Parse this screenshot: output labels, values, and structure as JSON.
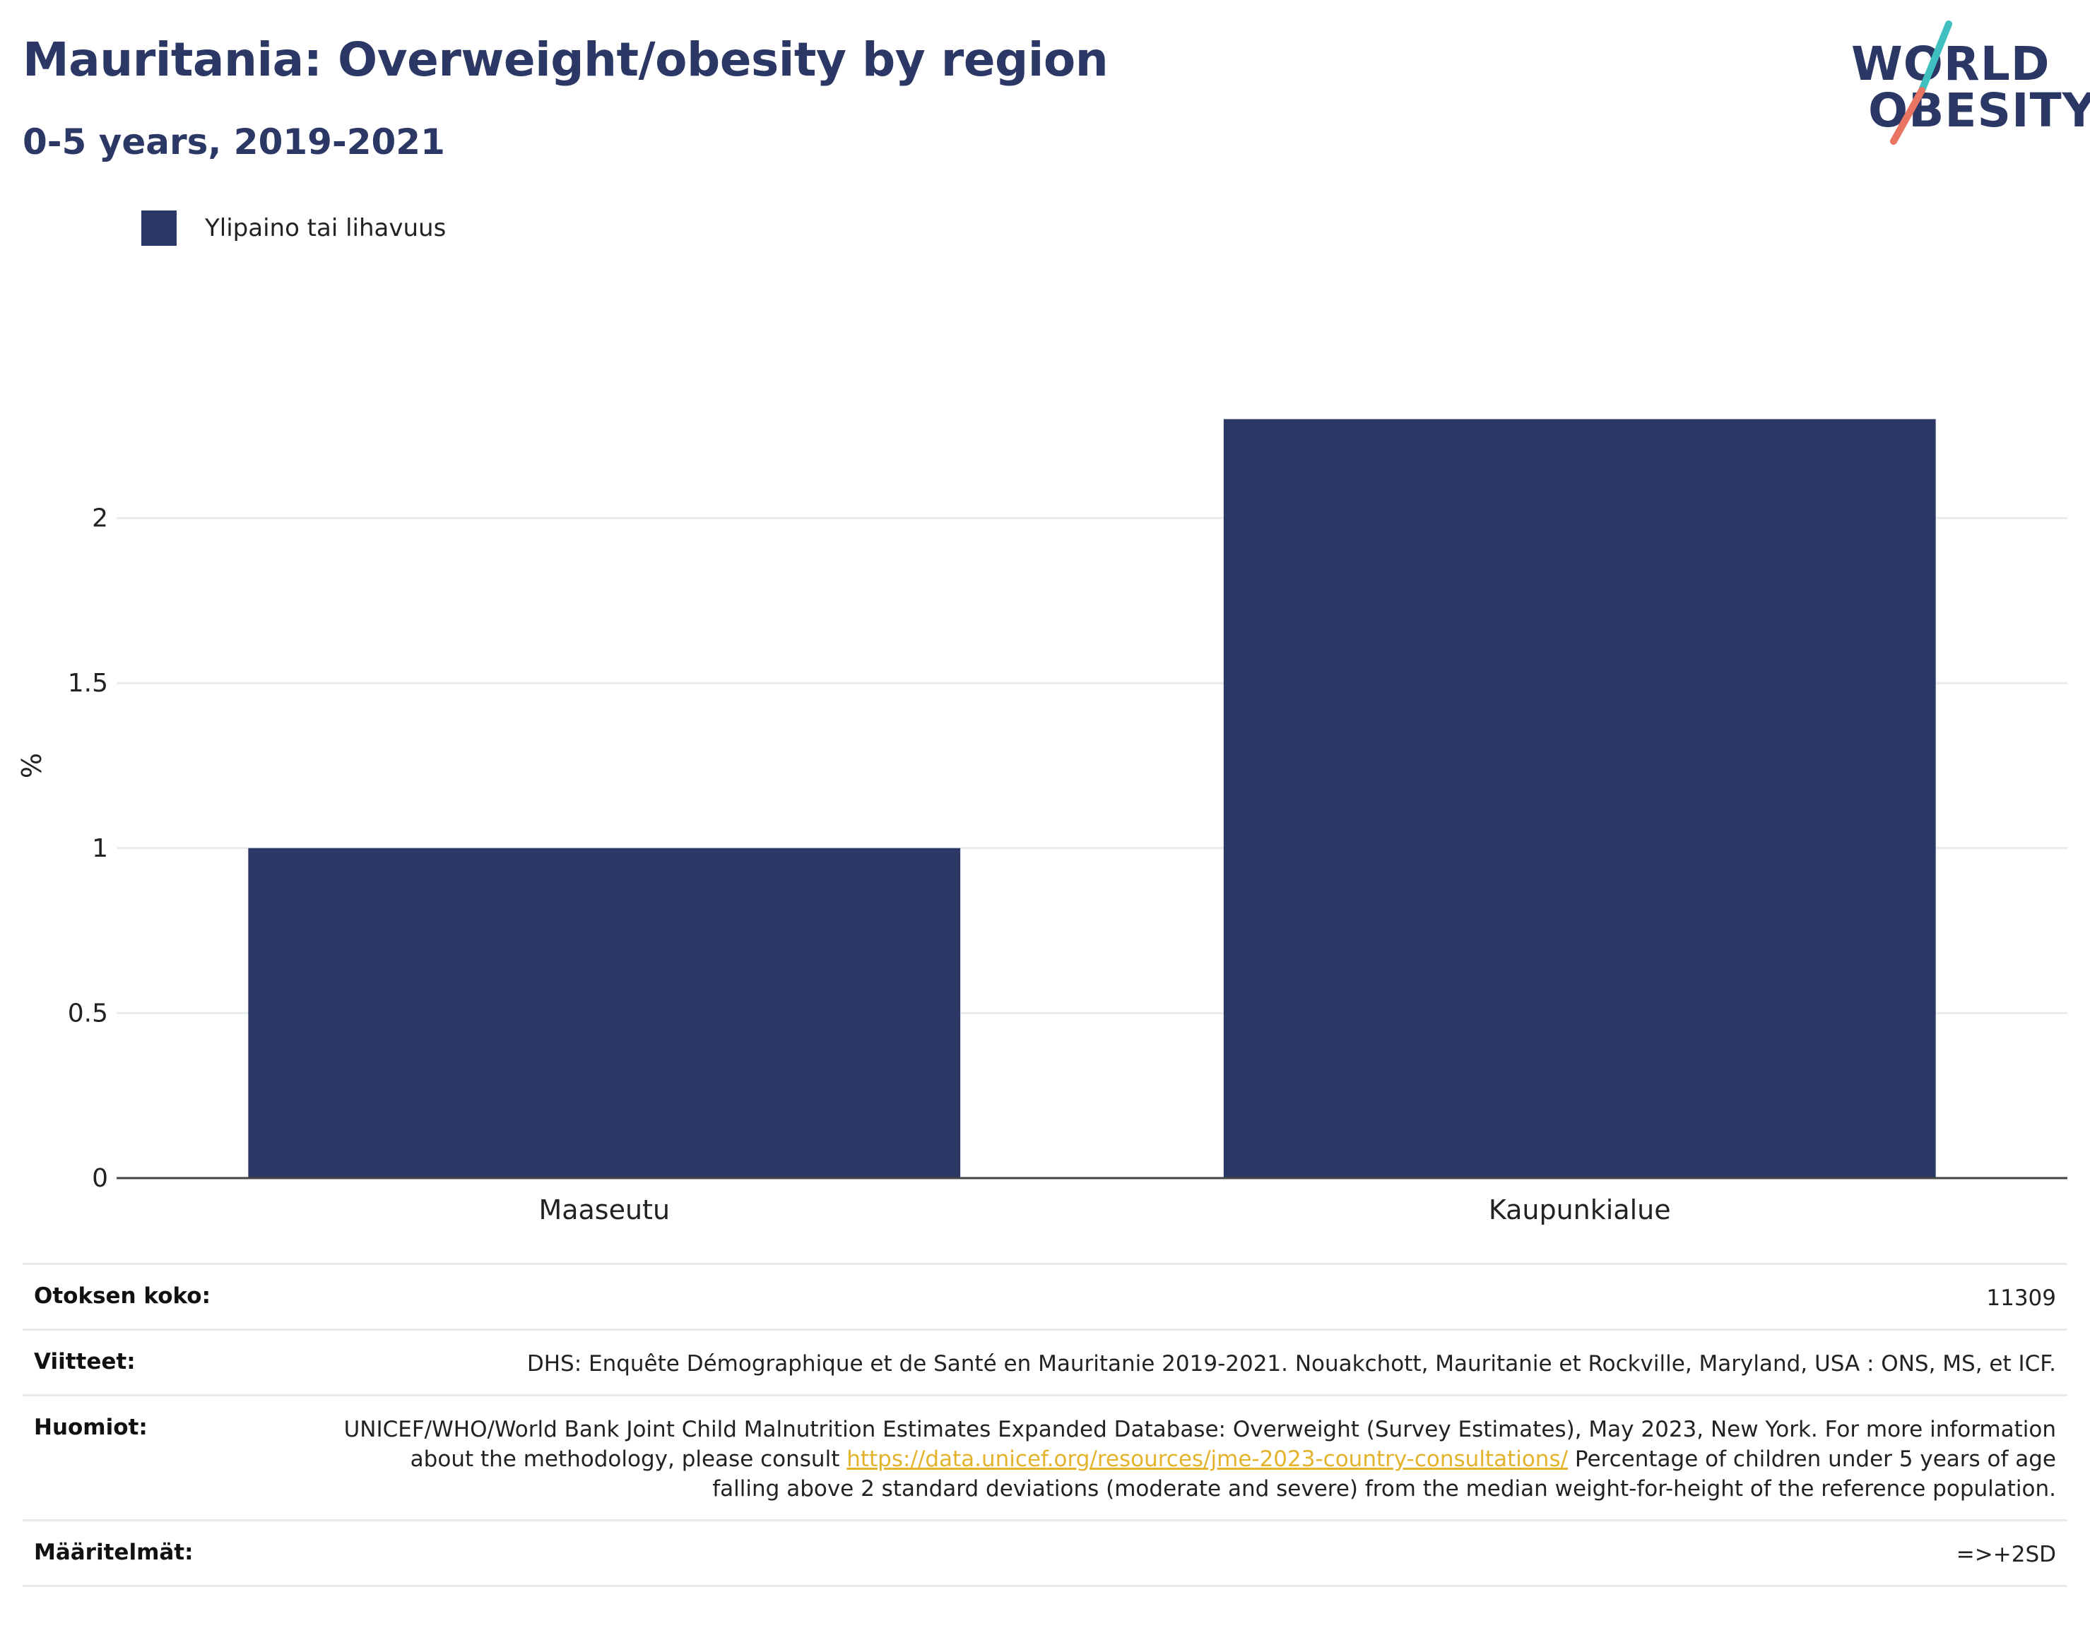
{
  "header": {
    "title": "Mauritania: Overweight/obesity by region",
    "subtitle": "0-5 years, 2019-2021"
  },
  "logo": {
    "line1": "WORLD",
    "line2": "OBESITY",
    "colors": {
      "text": "#2b3765",
      "slash_top": "#3fbfbf",
      "slash_bottom": "#e87461"
    }
  },
  "chart_data": {
    "type": "bar",
    "categories": [
      "Maaseutu",
      "Kaupunkialue"
    ],
    "series": [
      {
        "name": "Ylipaino tai lihavuus",
        "values": [
          1.0,
          2.3
        ],
        "color": "#2b3765"
      }
    ],
    "ylabel": "%",
    "xlabel": "",
    "ylim": [
      0,
      2.5
    ],
    "yticks": [
      0,
      0.5,
      1,
      1.5,
      2
    ],
    "ytick_labels": [
      "0",
      "0.5",
      "1",
      "1.5",
      "2"
    ],
    "grid": true,
    "legend_position": "top-left"
  },
  "info": {
    "sample_size": {
      "label": "Otoksen koko:",
      "value": "11309"
    },
    "references": {
      "label": "Viitteet:",
      "value": "DHS: Enquête Démographique et de Santé en Mauritanie 2019-2021. Nouakchott, Mauritanie et Rockville, Maryland, USA : ONS, MS, et ICF."
    },
    "notes": {
      "label": "Huomiot:",
      "text_before_link": "UNICEF/WHO/World Bank Joint Child Malnutrition Estimates Expanded Database: Overweight (Survey Estimates), May 2023, New York. For more information about the methodology, please consult ",
      "link": "https://data.unicef.org/resources/jme-2023-country-consultations/",
      "text_after_link": " Percentage of children under 5 years of age falling above 2 standard deviations (moderate and severe) from the median weight-for-height of the reference population."
    },
    "definitions": {
      "label": "Määritelmät:",
      "value": "=>+2SD"
    }
  }
}
